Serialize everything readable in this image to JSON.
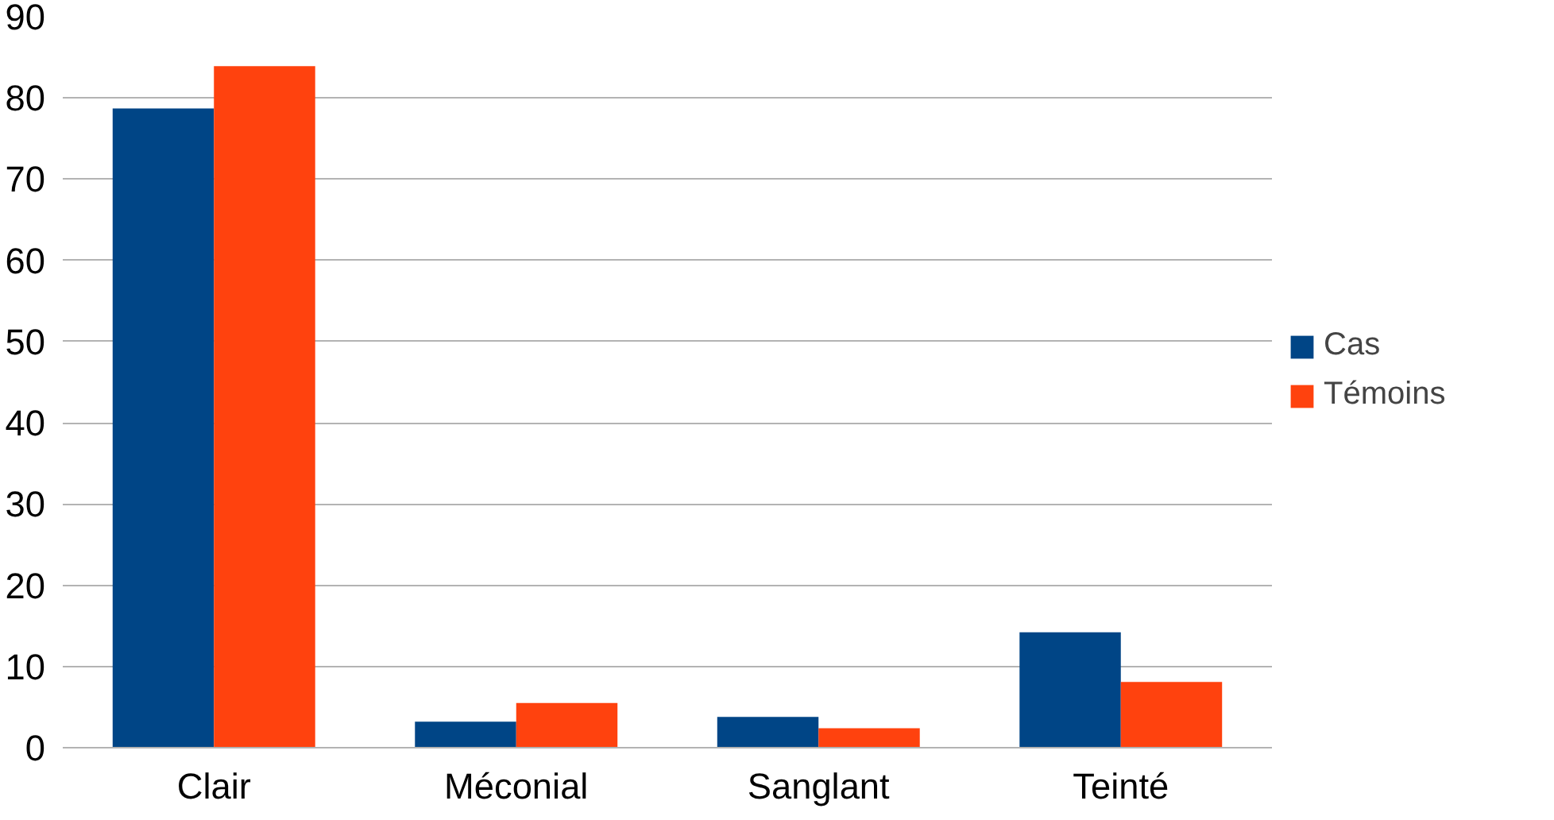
{
  "chart_data": {
    "type": "bar",
    "categories": [
      "Clair",
      "Méconial",
      "Sanglant",
      "Teinté"
    ],
    "series": [
      {
        "name": "Cas",
        "color": "#004586",
        "values": [
          78.7,
          3.2,
          3.8,
          14.2
        ]
      },
      {
        "name": "Témoins",
        "color": "#ff420e",
        "values": [
          83.9,
          5.5,
          2.4,
          8.1
        ]
      }
    ],
    "ylim": [
      0,
      90
    ],
    "yticks": [
      0,
      10,
      20,
      30,
      40,
      50,
      60,
      70,
      80,
      90
    ],
    "grid": "y",
    "legend": "right"
  }
}
